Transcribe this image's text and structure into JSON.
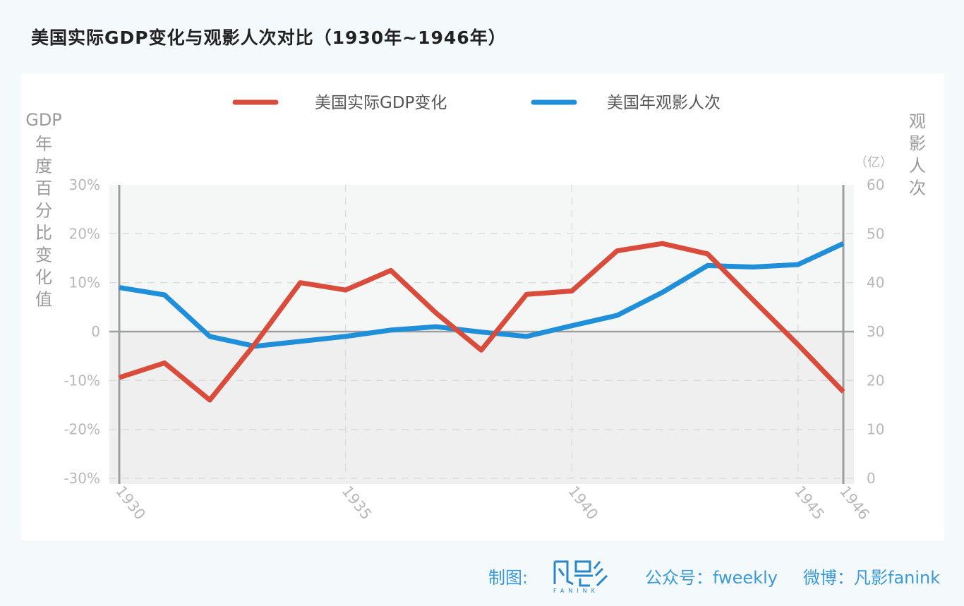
{
  "title": "美国实际GDP变化与观影人次对比（1930年~1946年）",
  "footer": {
    "credit_label": "制图:",
    "logo_main": "凡影",
    "logo_sub": "FANINK",
    "wechat": "公众号：fweekly",
    "weibo": "微博：凡影fanink"
  },
  "colors": {
    "gdp": "#d94b3a",
    "attendance": "#1e8fd8",
    "axis_text": "#b8b8b8",
    "axis_label": "#9a9a9a"
  },
  "chart_data": {
    "type": "line",
    "x": [
      1930,
      1931,
      1932,
      1933,
      1934,
      1935,
      1936,
      1937,
      1938,
      1939,
      1940,
      1941,
      1942,
      1943,
      1944,
      1945,
      1946
    ],
    "xticks": [
      "1930",
      "1935",
      "1940",
      "1945",
      "1946"
    ],
    "legend_position": "top",
    "grid": true,
    "series": [
      {
        "name": "美国实际GDP变化",
        "axis": "left",
        "values": [
          -9.4,
          -6.4,
          -14.0,
          -2.5,
          10.0,
          8.5,
          12.5,
          3.8,
          -3.8,
          7.6,
          8.3,
          16.5,
          18.0,
          15.9,
          6.5,
          -2.7,
          -12.3
        ]
      },
      {
        "name": "美国年观影人次",
        "axis": "right",
        "values": [
          39.0,
          37.5,
          29.0,
          27.0,
          28.0,
          29.0,
          30.3,
          31.0,
          29.9,
          29.0,
          31.2,
          33.3,
          38.0,
          43.5,
          43.2,
          43.7,
          48.0
        ]
      }
    ],
    "left_axis": {
      "label_lines": [
        "GDP",
        "年",
        "度",
        "百",
        "分",
        "比",
        "变",
        "化",
        "值"
      ],
      "ticks": [
        "30%",
        "20%",
        "10%",
        "0",
        "-10%",
        "-20%",
        "-30%"
      ],
      "ylim": [
        -30,
        30
      ]
    },
    "right_axis": {
      "label_lines": [
        "观",
        "影",
        "人",
        "次"
      ],
      "unit": "（亿）",
      "ticks": [
        "60",
        "50",
        "40",
        "30",
        "20",
        "10",
        "0"
      ],
      "ylim": [
        0,
        60
      ]
    }
  }
}
